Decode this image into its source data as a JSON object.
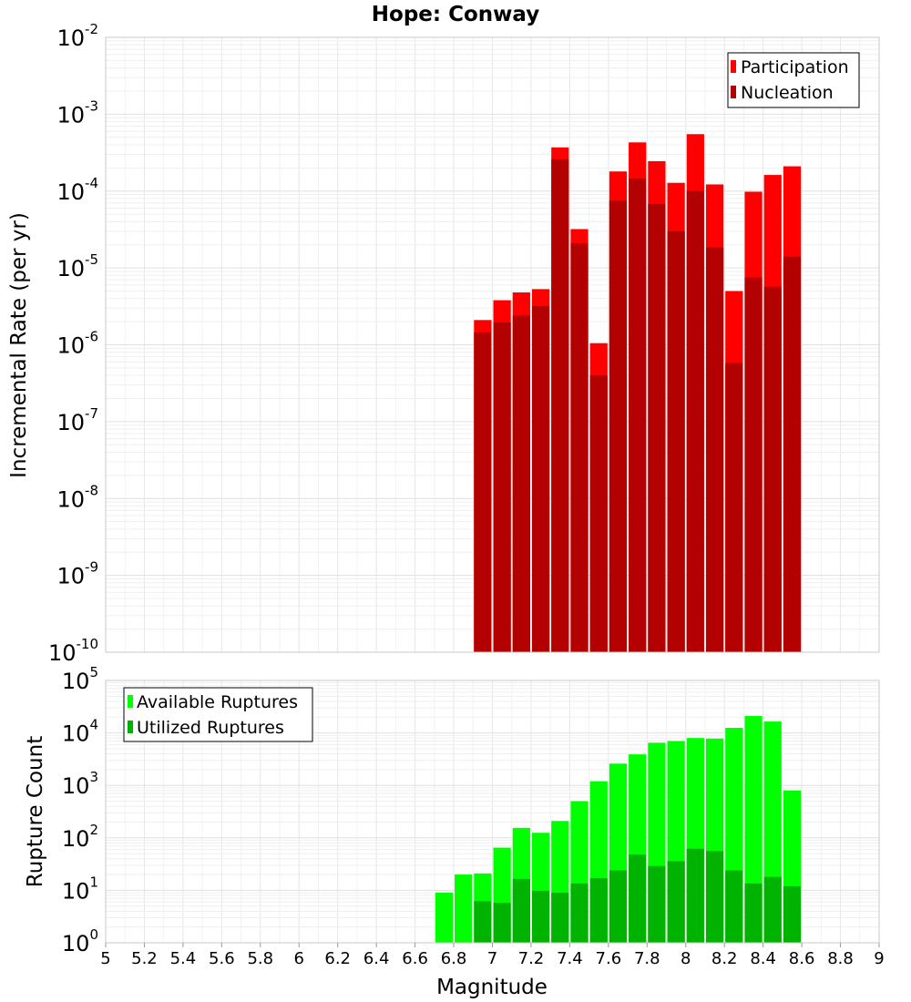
{
  "chart_data": [
    {
      "type": "bar",
      "title": "Hope: Conway",
      "xlabel": "",
      "ylabel": "Incremental Rate (per yr)",
      "yscale": "log",
      "xlim": [
        5,
        9
      ],
      "ylim": [
        1e-10,
        0.01
      ],
      "grid": true,
      "legend_position": "top-right",
      "y_ticks": [
        {
          "base": "10",
          "exp": "-10"
        },
        {
          "base": "10",
          "exp": "-9"
        },
        {
          "base": "10",
          "exp": "-8"
        },
        {
          "base": "10",
          "exp": "-7"
        },
        {
          "base": "10",
          "exp": "-6"
        },
        {
          "base": "10",
          "exp": "-5"
        },
        {
          "base": "10",
          "exp": "-4"
        },
        {
          "base": "10",
          "exp": "-3"
        },
        {
          "base": "10",
          "exp": "-2"
        }
      ],
      "x": [
        6.95,
        7.05,
        7.15,
        7.25,
        7.35,
        7.45,
        7.55,
        7.65,
        7.75,
        7.85,
        7.95,
        8.05,
        8.15,
        8.25,
        8.35,
        8.45,
        8.55
      ],
      "series": [
        {
          "name": "Participation",
          "color": "#ff0000",
          "values": [
            2.1e-06,
            3.8e-06,
            4.8e-06,
            5.3e-06,
            0.00037,
            3.2e-05,
            1.05e-06,
            0.00018,
            0.00043,
            0.000245,
            0.000128,
            0.00055,
            0.000122,
            5e-06,
            9.8e-05,
            0.000162,
            0.00021
          ]
        },
        {
          "name": "Nucleation",
          "color": "#b30000",
          "values": [
            1.45e-06,
            1.95e-06,
            2.4e-06,
            3.2e-06,
            0.00026,
            2.1e-05,
            4e-07,
            7.5e-05,
            0.000145,
            6.8e-05,
            3e-05,
            0.0001,
            1.85e-05,
            5.8e-07,
            7.5e-06,
            5.7e-06,
            1.4e-05
          ]
        }
      ]
    },
    {
      "type": "bar",
      "title": "",
      "xlabel": "Magnitude",
      "ylabel": "Rupture Count",
      "yscale": "log",
      "xlim": [
        5,
        9
      ],
      "ylim": [
        1,
        100000
      ],
      "grid": true,
      "legend_position": "top-left",
      "x_ticks": [
        "5",
        "5.2",
        "5.4",
        "5.6",
        "5.8",
        "6",
        "6.2",
        "6.4",
        "6.6",
        "6.8",
        "7",
        "7.2",
        "7.4",
        "7.6",
        "7.8",
        "8",
        "8.2",
        "8.4",
        "8.6",
        "8.8",
        "9"
      ],
      "y_ticks": [
        {
          "base": "10",
          "exp": "0"
        },
        {
          "base": "10",
          "exp": "1"
        },
        {
          "base": "10",
          "exp": "2"
        },
        {
          "base": "10",
          "exp": "3"
        },
        {
          "base": "10",
          "exp": "4"
        },
        {
          "base": "10",
          "exp": "5"
        }
      ],
      "x": [
        6.75,
        6.85,
        6.95,
        7.05,
        7.15,
        7.25,
        7.35,
        7.45,
        7.55,
        7.65,
        7.75,
        7.85,
        7.95,
        8.05,
        8.15,
        8.25,
        8.35,
        8.45,
        8.55
      ],
      "series": [
        {
          "name": "Available Ruptures",
          "color": "#00ff00",
          "values": [
            9,
            20,
            21,
            65,
            155,
            125,
            210,
            500,
            1200,
            2600,
            3900,
            6500,
            7000,
            8000,
            7800,
            12500,
            21000,
            16500,
            800
          ]
        },
        {
          "name": "Utilized Ruptures",
          "color": "#00b300",
          "values": [
            null,
            null,
            6.2,
            5.8,
            16.5,
            9.8,
            9.0,
            13.5,
            17.0,
            24,
            48,
            29,
            36,
            62,
            56,
            24,
            13.5,
            18,
            12
          ]
        }
      ]
    }
  ]
}
